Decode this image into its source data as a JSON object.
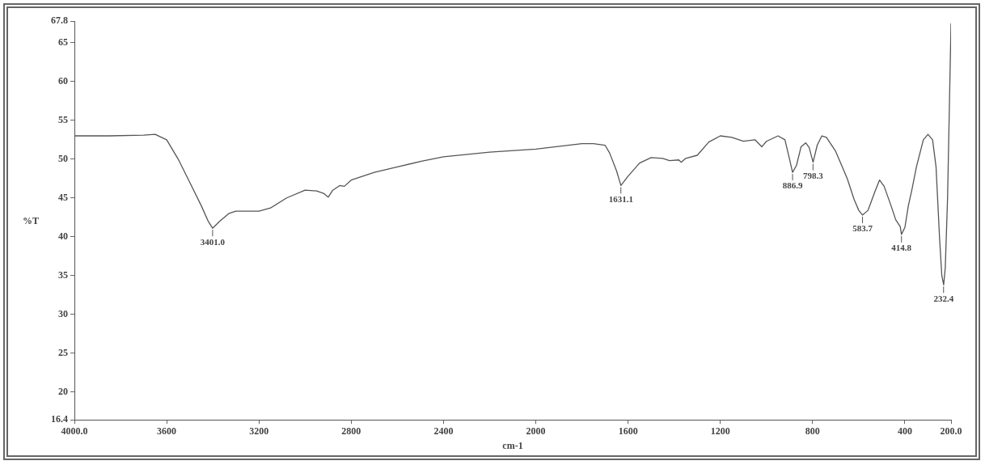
{
  "chart_data": {
    "type": "line",
    "xlabel": "cm-1",
    "ylabel": "%T",
    "xlim": [
      4000,
      200
    ],
    "ylim": [
      16.4,
      67.8
    ],
    "xticks": [
      {
        "value": 4000,
        "label": "4000.0"
      },
      3600,
      3200,
      2800,
      2400,
      2000,
      1600,
      1200,
      800,
      400,
      {
        "value": 200,
        "label": "200.0"
      }
    ],
    "yticks": [
      16.4,
      20,
      25,
      30,
      35,
      40,
      45,
      50,
      55,
      60,
      65,
      67.8
    ],
    "grid": false,
    "legend": false,
    "marker": "none",
    "line_style": "solid",
    "series": [
      {
        "color": "#555555",
        "x": [
          4000,
          3850,
          3700,
          3650,
          3600,
          3550,
          3500,
          3450,
          3420,
          3401,
          3370,
          3330,
          3300,
          3200,
          3150,
          3080,
          3000,
          2950,
          2920,
          2900,
          2880,
          2850,
          2830,
          2800,
          2700,
          2600,
          2500,
          2400,
          2200,
          2000,
          1800,
          1750,
          1700,
          1680,
          1650,
          1631,
          1600,
          1550,
          1500,
          1450,
          1420,
          1380,
          1370,
          1350,
          1300,
          1250,
          1200,
          1150,
          1100,
          1050,
          1020,
          1000,
          950,
          920,
          900,
          887,
          870,
          850,
          830,
          815,
          798,
          780,
          760,
          740,
          700,
          650,
          620,
          600,
          584,
          560,
          530,
          510,
          490,
          460,
          440,
          420,
          415,
          400,
          385,
          370,
          350,
          320,
          300,
          280,
          265,
          250,
          240,
          232,
          225,
          215,
          205,
          200
        ],
        "values": [
          53.0,
          53.0,
          53.1,
          53.2,
          52.5,
          50,
          47,
          44,
          42,
          41.1,
          42,
          43,
          43.3,
          43.3,
          43.7,
          45,
          46,
          45.9,
          45.6,
          45.1,
          46,
          46.6,
          46.5,
          47.3,
          48.3,
          49,
          49.7,
          50.3,
          50.9,
          51.3,
          52.0,
          52.0,
          51.8,
          50.8,
          48.5,
          46.6,
          47.8,
          49.5,
          50.2,
          50.1,
          49.8,
          49.9,
          49.6,
          50.1,
          50.5,
          52.2,
          53.0,
          52.8,
          52.3,
          52.5,
          51.6,
          52.3,
          53.0,
          52.5,
          50,
          48.3,
          49.2,
          51.6,
          52.1,
          51.5,
          49.6,
          51.8,
          53.0,
          52.8,
          51,
          47.5,
          44.8,
          43.4,
          42.8,
          43.4,
          45.8,
          47.3,
          46.5,
          44,
          42.2,
          41.3,
          40.3,
          41.2,
          44,
          46,
          49,
          52.5,
          53.2,
          52.5,
          49,
          40,
          35,
          33.8,
          36,
          45,
          60,
          67.5
        ]
      }
    ],
    "annotations": [
      {
        "text": "3401.0",
        "x": 3401,
        "y": 41.1
      },
      {
        "text": "1631.1",
        "x": 1631.1,
        "y": 46.6
      },
      {
        "text": "886.9",
        "x": 886.9,
        "y": 48.3
      },
      {
        "text": "798.3",
        "x": 798.3,
        "y": 49.6
      },
      {
        "text": "583.7",
        "x": 583.7,
        "y": 42.8
      },
      {
        "text": "414.8",
        "x": 414.8,
        "y": 40.3
      },
      {
        "text": "232.4",
        "x": 232.4,
        "y": 33.8
      }
    ]
  }
}
